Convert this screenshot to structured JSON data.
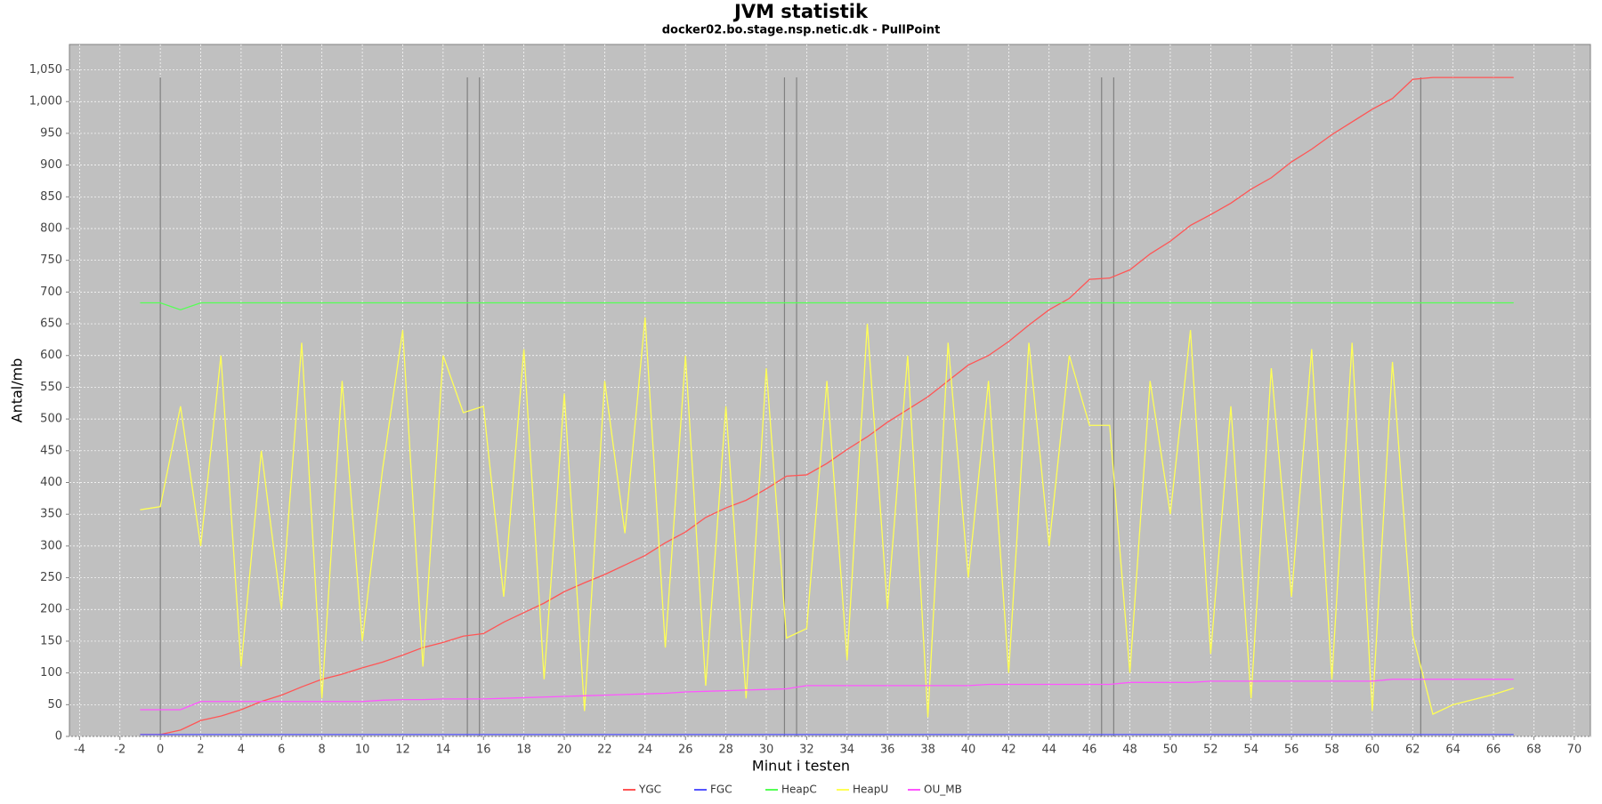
{
  "chart_data": {
    "type": "line",
    "title": "JVM statistik",
    "subtitle": "docker02.bo.stage.nsp.netic.dk - PullPoint",
    "x_label": "Minut i testen",
    "y_label": "Antal/mb",
    "x": [
      -1,
      0,
      1,
      2,
      3,
      4,
      5,
      6,
      7,
      8,
      9,
      10,
      11,
      12,
      13,
      14,
      15,
      16,
      17,
      18,
      19,
      20,
      21,
      22,
      23,
      24,
      25,
      26,
      27,
      28,
      29,
      30,
      31,
      32,
      33,
      34,
      35,
      36,
      37,
      38,
      39,
      40,
      41,
      42,
      43,
      44,
      45,
      46,
      47,
      48,
      49,
      50,
      51,
      52,
      53,
      54,
      55,
      56,
      57,
      58,
      59,
      60,
      61,
      62,
      63,
      64,
      65,
      66,
      67
    ],
    "series": [
      {
        "name": "YGC",
        "color": "#ff5555",
        "values": [
          3,
          3,
          10,
          25,
          32,
          42,
          55,
          65,
          78,
          90,
          98,
          108,
          117,
          128,
          140,
          148,
          158,
          162,
          180,
          195,
          210,
          228,
          242,
          255,
          270,
          285,
          305,
          322,
          345,
          360,
          372,
          390,
          410,
          412,
          430,
          452,
          472,
          495,
          515,
          535,
          560,
          585,
          600,
          622,
          648,
          672,
          690,
          720,
          722,
          735,
          760,
          780,
          805,
          822,
          840,
          862,
          880,
          905,
          925,
          948,
          968,
          988,
          1005,
          1035,
          1038,
          1038,
          1038,
          1038,
          1038
        ]
      },
      {
        "name": "FGC",
        "color": "#5555ff",
        "values": [
          3,
          3,
          3,
          3,
          3,
          3,
          3,
          3,
          3,
          3,
          3,
          3,
          3,
          3,
          3,
          3,
          3,
          3,
          3,
          3,
          3,
          3,
          3,
          3,
          3,
          3,
          3,
          3,
          3,
          3,
          3,
          3,
          3,
          3,
          3,
          3,
          3,
          3,
          3,
          3,
          3,
          3,
          3,
          3,
          3,
          3,
          3,
          3,
          3,
          3,
          3,
          3,
          3,
          3,
          3,
          3,
          3,
          3,
          3,
          3,
          3,
          3,
          3,
          3,
          3,
          3,
          3,
          3,
          3
        ]
      },
      {
        "name": "HeapC",
        "color": "#55ff55",
        "values": [
          683,
          683,
          672,
          683,
          683,
          683,
          683,
          683,
          683,
          683,
          683,
          683,
          683,
          683,
          683,
          683,
          683,
          683,
          683,
          683,
          683,
          683,
          683,
          683,
          683,
          683,
          683,
          683,
          683,
          683,
          683,
          683,
          683,
          683,
          683,
          683,
          683,
          683,
          683,
          683,
          683,
          683,
          683,
          683,
          683,
          683,
          683,
          683,
          683,
          683,
          683,
          683,
          683,
          683,
          683,
          683,
          683,
          683,
          683,
          683,
          683,
          683,
          683,
          683,
          683,
          683,
          683,
          683,
          683
        ]
      },
      {
        "name": "HeapU",
        "color": "#ffff55",
        "values": [
          357,
          362,
          520,
          300,
          600,
          110,
          450,
          200,
          620,
          60,
          560,
          150,
          420,
          640,
          110,
          600,
          510,
          520,
          220,
          610,
          90,
          540,
          40,
          560,
          320,
          660,
          140,
          600,
          80,
          520,
          60,
          580,
          155,
          170,
          560,
          120,
          650,
          200,
          600,
          30,
          620,
          250,
          560,
          100,
          620,
          300,
          600,
          490,
          490,
          100,
          560,
          350,
          640,
          130,
          520,
          60,
          580,
          220,
          610,
          90,
          620,
          40,
          590,
          160,
          35,
          50,
          58,
          66,
          76
        ]
      },
      {
        "name": "OU_MB",
        "color": "#ff55ff",
        "values": [
          42,
          42,
          42,
          55,
          55,
          55,
          55,
          55,
          55,
          55,
          55,
          55,
          57,
          58,
          58,
          59,
          59,
          59,
          60,
          61,
          62,
          63,
          64,
          65,
          66,
          67,
          68,
          70,
          71,
          72,
          73,
          74,
          75,
          80,
          80,
          80,
          80,
          80,
          80,
          80,
          80,
          80,
          82,
          82,
          82,
          82,
          82,
          82,
          82,
          85,
          85,
          85,
          85,
          87,
          87,
          87,
          87,
          87,
          87,
          87,
          87,
          87,
          90,
          90,
          90,
          90,
          90,
          90,
          90
        ]
      }
    ],
    "markers": [
      0,
      15.2,
      15.8,
      30.9,
      31.5,
      46.6,
      47.2,
      62.4
    ],
    "marker_color": "#808080",
    "xlim": [
      -4.5,
      70.8
    ],
    "xticks": [
      -4,
      -2,
      0,
      2,
      4,
      6,
      8,
      10,
      12,
      14,
      16,
      18,
      20,
      22,
      24,
      26,
      28,
      30,
      32,
      34,
      36,
      38,
      40,
      42,
      44,
      46,
      48,
      50,
      52,
      54,
      56,
      58,
      60,
      62,
      64,
      66,
      68,
      70
    ],
    "ylim": [
      0,
      1090
    ],
    "yticks": [
      0,
      50,
      100,
      150,
      200,
      250,
      300,
      350,
      400,
      450,
      500,
      550,
      600,
      650,
      700,
      750,
      800,
      850,
      900,
      950,
      {
        "value": 1000,
        "label": "1,000"
      },
      {
        "value": 1050,
        "label": "1,050"
      }
    ],
    "grid": true,
    "background": "#c0c0c0",
    "legend": "bottom"
  }
}
